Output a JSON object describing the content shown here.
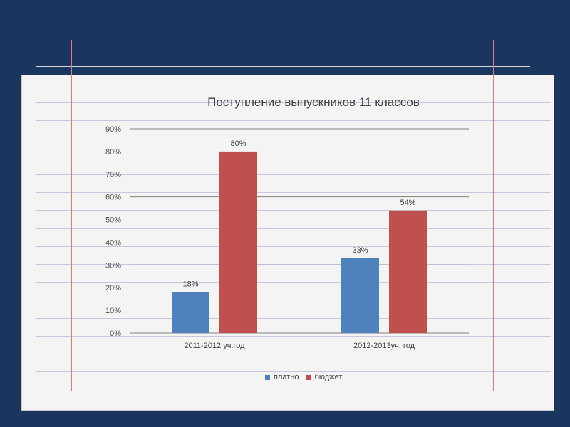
{
  "colors": {
    "background": "#1b365e",
    "panel": "#f5f4f4",
    "series_1": "#4f81bd",
    "series_2": "#c0504d",
    "margin_line": "#e07a7a",
    "ruled_line": "#c8c5dd"
  },
  "chart_data": {
    "type": "bar",
    "title": "Поступление выпускников 11 классов",
    "categories": [
      "2011-2012 уч.год",
      "2012-2013уч. год"
    ],
    "series": [
      {
        "name": "платно",
        "values": [
          18,
          33
        ],
        "labels": [
          "18%",
          "33%"
        ],
        "color": "#4f81bd"
      },
      {
        "name": "бюджет",
        "values": [
          80,
          54
        ],
        "labels": [
          "80%",
          "54%"
        ],
        "color": "#c0504d"
      }
    ],
    "ylim": [
      0,
      90
    ],
    "y_ticks": [
      "0%",
      "10%",
      "20%",
      "30%",
      "40%",
      "50%",
      "60%",
      "70%",
      "80%",
      "90%"
    ],
    "grid": true,
    "legend": "bottom"
  }
}
